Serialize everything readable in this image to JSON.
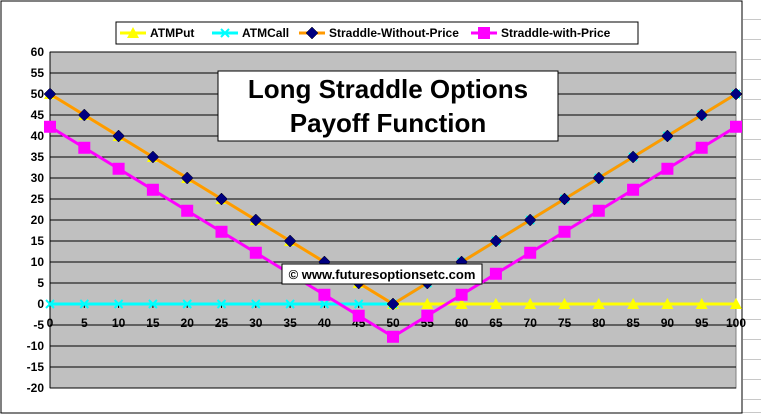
{
  "chart_data": {
    "type": "line",
    "title_lines": [
      "Long Straddle Options",
      "Payoff Function"
    ],
    "credit": "© www.futuresoptionsetc.com",
    "x": [
      0,
      5,
      10,
      15,
      20,
      25,
      30,
      35,
      40,
      45,
      50,
      55,
      60,
      65,
      70,
      75,
      80,
      85,
      90,
      95,
      100
    ],
    "ylim": [
      -20,
      60
    ],
    "yticks": [
      -20,
      -15,
      -10,
      -5,
      0,
      5,
      10,
      15,
      20,
      25,
      30,
      35,
      40,
      45,
      50,
      55,
      60
    ],
    "grid": true,
    "legend_position": "top",
    "series": [
      {
        "name": "ATMPut",
        "color": "#ffff00",
        "marker": "triangle",
        "values": [
          50,
          45,
          40,
          35,
          30,
          25,
          20,
          15,
          10,
          5,
          0,
          0,
          0,
          0,
          0,
          0,
          0,
          0,
          0,
          0,
          0
        ]
      },
      {
        "name": "ATMCall",
        "color": "#00ffff",
        "marker": "x",
        "values": [
          0,
          0,
          0,
          0,
          0,
          0,
          0,
          0,
          0,
          0,
          0,
          5,
          10,
          15,
          20,
          25,
          30,
          35,
          40,
          45,
          50
        ]
      },
      {
        "name": "Straddle-Without-Price",
        "color": "#ff9900",
        "marker": "diamond",
        "values": [
          50,
          45,
          40,
          35,
          30,
          25,
          20,
          15,
          10,
          5,
          0,
          5,
          10,
          15,
          20,
          25,
          30,
          35,
          40,
          45,
          50
        ]
      },
      {
        "name": "Straddle-with-Price",
        "color": "#ff00ff",
        "marker": "square",
        "values": [
          42.2,
          37.2,
          32.2,
          27.2,
          22.2,
          17.2,
          12.2,
          7.2,
          2.2,
          -2.8,
          -7.8,
          -2.8,
          2.2,
          7.2,
          12.2,
          17.2,
          22.2,
          27.2,
          32.2,
          37.2,
          42.2
        ]
      }
    ]
  },
  "colors": {
    "plot_background": "#c0c0c0",
    "diamond_marker": "#000080",
    "frame": "#000000"
  }
}
